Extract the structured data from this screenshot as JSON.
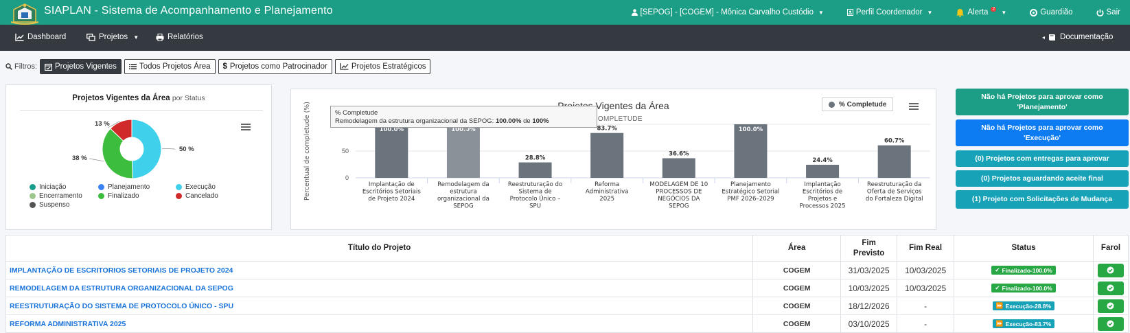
{
  "app": {
    "title": "SIAPLAN - Sistema de Acompanhamento e Planejamento"
  },
  "topbar": {
    "user": "[SEPOG] - [COGEM] - Mônica Carvalho Custódio",
    "profile": "Perfil Coordenador",
    "alert_label": "Alerta",
    "alert_count": "2",
    "guardian": "Guardião",
    "logout": "Sair"
  },
  "nav": {
    "dashboard": "Dashboard",
    "projects": "Projetos",
    "reports": "Relatórios",
    "documentation": "Documentação"
  },
  "filters": {
    "label": "Filtros:",
    "items": [
      "Projetos Vigentes",
      "Todos Projetos Área",
      "Projetos como Patrocinador",
      "Projetos Estratégicos"
    ]
  },
  "pie": {
    "title": "Projetos Vigentes da Área",
    "subtitle": "por Status",
    "legend": [
      {
        "label": "Iniciação",
        "color": "#1a9c8c"
      },
      {
        "label": "Planejamento",
        "color": "#3b82f6"
      },
      {
        "label": "Execução",
        "color": "#3fd0ec"
      },
      {
        "label": "Encerramento",
        "color": "#9cc78a"
      },
      {
        "label": "Finalizado",
        "color": "#3dbd3d"
      },
      {
        "label": "Cancelado",
        "color": "#d12a2a"
      },
      {
        "label": "Suspenso",
        "color": "#555555"
      }
    ]
  },
  "chart_data": {
    "type": "bar",
    "title": "Projetos Vigentes da Área",
    "subtitle": "% COMPLETUDE",
    "ylabel": "Percentual de completude (%)",
    "ylim": [
      0,
      100
    ],
    "yticks": [
      "0",
      "50",
      "100"
    ],
    "legend": "% Completude",
    "categories": [
      "Implantação de Escritórios Setoriais de Projeto 2024",
      "Remodelagem da estrutura organizacional da SEPOG",
      "Reestruturação do Sistema de Protocolo Único - SPU",
      "Reforma Administrativa 2025",
      "MODELAGEM DE 10 PROCESSOS DE NEGÓCIOS DA SEPOG",
      "Planejamento Estratégico Setorial PMF 2026-2029",
      "Implantação Escritórios de Projetos e Processos 2025",
      "Reestruturação da Oferta de Serviços do Fortaleza Digital"
    ],
    "category_lines": [
      [
        "Implantação de",
        "Escritórios Setoriais",
        "de Projeto 2024"
      ],
      [
        "Remodelagem da",
        "estrutura",
        "organizacional da",
        "SEPOG"
      ],
      [
        "Reestruturação do",
        "Sistema de",
        "Protocolo Único –",
        "SPU"
      ],
      [
        "Reforma",
        "Administrativa",
        "2025"
      ],
      [
        "MODELAGEM DE 10",
        "PROCESSOS DE",
        "NEGÓCIOS DA",
        "SEPOG"
      ],
      [
        "Planejamento",
        "Estratégico Setorial",
        "PMF 2026–2029"
      ],
      [
        "Implantação",
        "Escritórios de",
        "Projetos e",
        "Processos 2025"
      ],
      [
        "Reestruturação da",
        "Oferta de Serviços",
        "do Fortaleza Digital"
      ]
    ],
    "values": [
      100,
      100,
      28.8,
      83.7,
      36.6,
      100,
      24.4,
      60.7
    ],
    "value_labels": [
      "100.0%",
      "100.0%",
      "28.8%",
      "83.7%",
      "36.6%",
      "100.0%",
      "24.4%",
      "60.7%"
    ],
    "bar_color": "#6b737d",
    "hover_color": "#8a9199",
    "status_pie": {
      "type": "pie",
      "slices": [
        {
          "label": "Execução",
          "value": 50,
          "text": "50 %",
          "color": "#3fd0ec"
        },
        {
          "label": "Finalizado",
          "value": 38,
          "text": "38 %",
          "color": "#3dbd3d"
        },
        {
          "label": "Cancelado",
          "value": 13,
          "text": "13 %",
          "color": "#d12a2a"
        }
      ]
    }
  },
  "tooltip": {
    "series": "% Completude",
    "name": "Remodelagem da estrutura organizacional da SEPOG:",
    "value": "100.00%",
    "of": "de",
    "total": "100%"
  },
  "right_buttons": [
    {
      "label": "Não há Projetos para aprovar como 'Planejamento'",
      "color": "#1c9e86"
    },
    {
      "label": "Não há Projetos para aprovar como 'Execução'",
      "color": "#0d7cf2"
    },
    {
      "label": "(0) Projetos com entregas para aprovar",
      "color": "#17a2b8"
    },
    {
      "label": "(0) Projetos aguardando aceite final",
      "color": "#17a2b8"
    },
    {
      "label": "(1) Projeto com Solicitações de Mudança",
      "color": "#17a2b8"
    }
  ],
  "table": {
    "headers": {
      "title": "Título do Projeto",
      "area": "Área",
      "planned": "Fim Previsto",
      "real": "Fim Real",
      "status": "Status",
      "farol": "Farol"
    },
    "rows": [
      {
        "title": "IMPLANTAÇÃO DE ESCRITORIOS SETORIAIS DE PROJETO 2024",
        "area": "COGEM",
        "planned": "31/03/2025",
        "real": "10/03/2025",
        "status": "Finalizado-100.0%",
        "status_color": "#28a745"
      },
      {
        "title": "REMODELAGEM DA ESTRUTURA ORGANIZACIONAL DA SEPOG",
        "area": "COGEM",
        "planned": "10/03/2025",
        "real": "10/03/2025",
        "status": "Finalizado-100.0%",
        "status_color": "#28a745"
      },
      {
        "title": "REESTRUTURAÇÃO DO SISTEMA DE PROTOCOLO ÚNICO - SPU",
        "area": "COGEM",
        "planned": "18/12/2026",
        "real": "-",
        "status": "Execução-28.8%",
        "status_color": "#17a2b8"
      },
      {
        "title": "REFORMA ADMINISTRATIVA 2025",
        "area": "COGEM",
        "planned": "03/10/2025",
        "real": "-",
        "status": "Execução-83.7%",
        "status_color": "#17a2b8"
      }
    ]
  }
}
